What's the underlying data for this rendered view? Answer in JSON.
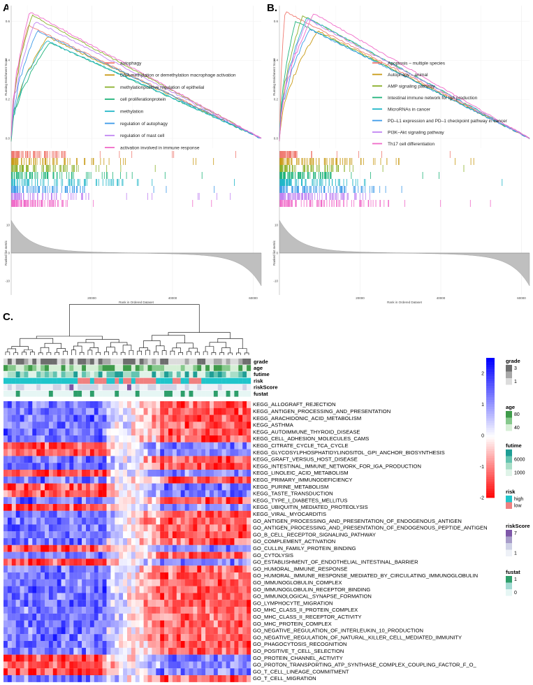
{
  "panels": {
    "a": "A.",
    "b": "B.",
    "c": "C."
  },
  "colors": {
    "heat_low": "#ff0000",
    "heat_mid": "#ffffff",
    "heat_high": "#0000ff",
    "rank_fill": "#bfbfbf",
    "es_line": "#ff66cc"
  },
  "chart_data": [
    {
      "type": "line",
      "panel": "A.",
      "title": "",
      "ylabel": "Running Enrichment Score",
      "xlabel": "Rank in Ordered Dataset",
      "x_ticks": [
        20000,
        40000,
        60000
      ],
      "y_ticks": [
        0.0,
        0.2,
        0.4,
        0.6
      ],
      "xlim": [
        0,
        62000
      ],
      "ylim": [
        -0.05,
        0.68
      ],
      "series": [
        {
          "name": "autophagy",
          "color": "#f07b72",
          "peak_rank": 4200,
          "peak_es": 0.58
        },
        {
          "name": "DNA methylation or demethylation macrophage activation",
          "color": "#c89a14",
          "peak_rank": 9000,
          "peak_es": 0.52
        },
        {
          "name": "methylationpositive regulation of epithelial",
          "color": "#8ab12c",
          "peak_rank": 5200,
          "peak_es": 0.63
        },
        {
          "name": "cell proliferationprotein",
          "color": "#1fb37a",
          "peak_rank": 9500,
          "peak_es": 0.49
        },
        {
          "name": "methylation",
          "color": "#21b6c8",
          "peak_rank": 8800,
          "peak_es": 0.5
        },
        {
          "name": "regulation of autophagy",
          "color": "#3c9ae8",
          "peak_rank": 6500,
          "peak_es": 0.55
        },
        {
          "name": "regulation of mast cell",
          "color": "#c184f2",
          "peak_rank": 6000,
          "peak_es": 0.6
        },
        {
          "name": "activation involved in immune response",
          "color": "#f06ac8",
          "peak_rank": 4600,
          "peak_es": 0.65
        }
      ],
      "rank_metric": {
        "ylabel": "Ranked list metric",
        "y_ticks": [
          10,
          0,
          -10
        ],
        "ylim": [
          -15,
          15
        ]
      }
    },
    {
      "type": "line",
      "panel": "B.",
      "title": "",
      "ylabel": "Running Enrichment Score",
      "xlabel": "Rank in Ordered Dataset",
      "x_ticks": [
        20000,
        40000,
        60000
      ],
      "y_ticks": [
        0.0,
        0.2,
        0.4,
        0.6
      ],
      "xlim": [
        0,
        62000
      ],
      "ylim": [
        -0.05,
        0.68
      ],
      "series": [
        {
          "name": "Apoptosis – multiple species",
          "color": "#f07b72",
          "peak_rank": 1400,
          "peak_es": 0.65
        },
        {
          "name": "Autophagy – animal",
          "color": "#c89a14",
          "peak_rank": 9500,
          "peak_es": 0.55
        },
        {
          "name": "AMP signaling pathway",
          "color": "#8ab12c",
          "peak_rank": 5800,
          "peak_es": 0.63
        },
        {
          "name": "Intestinal immune network for IgA production",
          "color": "#1fb37a",
          "peak_rank": 4000,
          "peak_es": 0.6
        },
        {
          "name": "MicroRNAs in cancer",
          "color": "#21b6c8",
          "peak_rank": 6800,
          "peak_es": 0.62
        },
        {
          "name": "PD–L1 expression and PD–1 checkpoint pathway in cancer",
          "color": "#3c9ae8",
          "peak_rank": 7500,
          "peak_es": 0.56
        },
        {
          "name": "PI3K–Akt signaling pathway",
          "color": "#c184f2",
          "peak_rank": 7000,
          "peak_es": 0.61
        },
        {
          "name": "Th17 cell differentiation",
          "color": "#f06ac8",
          "peak_rank": 8500,
          "peak_es": 0.64
        }
      ],
      "rank_metric": {
        "ylabel": "Ranked list metric",
        "y_ticks": [
          10,
          0,
          -10
        ],
        "ylim": [
          -15,
          15
        ]
      }
    },
    {
      "type": "heatmap",
      "panel": "C.",
      "title": "",
      "n_samples": 60,
      "annotation_tracks": [
        "grade",
        "age",
        "futime",
        "risk",
        "riskScore",
        "fustat"
      ],
      "rows": [
        "KEGG_ALLOGRAFT_REJECTION",
        "KEGG_ANTIGEN_PROCESSING_AND_PRESENTATION",
        "KEGG_ARACHIDONIC_ACID_METABOLISM",
        "KEGG_ASTHMA",
        "KEGG_AUTOIMMUNE_THYROID_DISEASE",
        "KEGG_CELL_ADHESION_MOLECULES_CAMS",
        "KEGG_CITRATE_CYCLE_TCA_CYCLE",
        "KEGG_GLYCOSYLPHOSPHATIDYLINOSITOL_GPI_ANCHOR_BIOSYNTHESIS",
        "KEGG_GRAFT_VERSUS_HOST_DISEASE",
        "KEGG_INTESTINAL_IMMUNE_NETWORK_FOR_IGA_PRODUCTION",
        "KEGG_LINOLEIC_ACID_METABOLISM",
        "KEGG_PRIMARY_IMMUNODEFICIENCY",
        "KEGG_PURINE_METABOLISM",
        "KEGG_TASTE_TRANSDUCTION",
        "KEGG_TYPE_I_DIABETES_MELLITUS",
        "KEGG_UBIQUITIN_MEDIATED_PROTEOLYSIS",
        "KEGG_VIRAL_MYOCARDITIS",
        "GO_ANTIGEN_PROCESSING_AND_PRESENTATION_OF_ENDOGENOUS_ANTIGEN",
        "GO_ANTIGEN_PROCESSING_AND_PRESENTATION_OF_ENDOGENOUS_PEPTIDE_ANTIGEN",
        "GO_B_CELL_RECEPTOR_SIGNALING_PATHWAY",
        "GO_COMPLEMENT_ACTIVATION",
        "GO_CULLIN_FAMILY_PROTEIN_BINDING",
        "GO_CYTOLYSIS",
        "GO_ESTABLISHMENT_OF_ENDOTHELIAL_INTESTINAL_BARRIER",
        "GO_HUMORAL_IMMUNE_RESPONSE",
        "GO_HUMORAL_IMMUNE_RESPONSE_MEDIATED_BY_CIRCULATING_IMMUNOGLOBULIN",
        "GO_IMMUNOGLOBULIN_COMPLEX",
        "GO_IMMUNOGLOBULIN_RECEPTOR_BINDING",
        "GO_IMMUNOLOGICAL_SYNAPSE_FORMATION",
        "GO_LYMPHOCYTE_MIGRATION",
        "GO_MHC_CLASS_II_PROTEIN_COMPLEX",
        "GO_MHC_CLASS_II_RECEPTOR_ACTIVITY",
        "GO_MHC_PROTEIN_COMPLEX",
        "GO_NEGATIVE_REGULATION_OF_INTERLEUKIN_10_PRODUCTION",
        "GO_NEGATIVE_REGULATION_OF_NATURAL_KILLER_CELL_MEDIATED_IMMUNITY",
        "GO_PHAGOCYTOSIS_RECOGNITION",
        "GO_POSITIVE_T_CELL_SELECTION",
        "GO_PROTEIN_CHANNEL_ACTIVITY",
        "GO_PROTON_TRANSPORTING_ATP_SYNTHASE_COMPLEX_COUPLING_FACTOR_F_O_",
        "GO_T_CELL_LINEAGE_COMMITMENT",
        "GO_T_CELL_MIGRATION"
      ],
      "inverted_rows": [
        6,
        7,
        10,
        12,
        13,
        15,
        21,
        23,
        37,
        38,
        39
      ],
      "color_scale": {
        "ticks": [
          2,
          1,
          0,
          -1,
          -2
        ],
        "range": [
          -2,
          2.5
        ]
      },
      "legends": [
        {
          "title": "grade",
          "labels": [
            "3",
            "",
            "1"
          ],
          "colors": [
            "#6e6e6e",
            "#a8a8a8",
            "#dcdcdc"
          ]
        },
        {
          "title": "age",
          "labels": [
            "80",
            "",
            "40"
          ],
          "colors": [
            "#3f9b4a",
            "#86c98c",
            "#d6efd6"
          ]
        },
        {
          "title": "futime",
          "labels": [
            "",
            "6000",
            "",
            "1000"
          ],
          "colors": [
            "#1f9e95",
            "#63c3b0",
            "#a9dec8",
            "#dff3e8"
          ]
        },
        {
          "title": "risk",
          "labels": [
            "high",
            "low"
          ],
          "colors": [
            "#20c5cb",
            "#f08080"
          ]
        },
        {
          "title": "riskScore",
          "labels": [
            "7",
            "",
            "",
            "1"
          ],
          "colors": [
            "#7e57a8",
            "#a79cc9",
            "#cfd2e6",
            "#eef1f7"
          ]
        },
        {
          "title": "fustat",
          "labels": [
            "1",
            "",
            "0"
          ],
          "colors": [
            "#2e9e6a",
            "#a3dad3",
            "#e6f6f4"
          ]
        }
      ]
    }
  ]
}
